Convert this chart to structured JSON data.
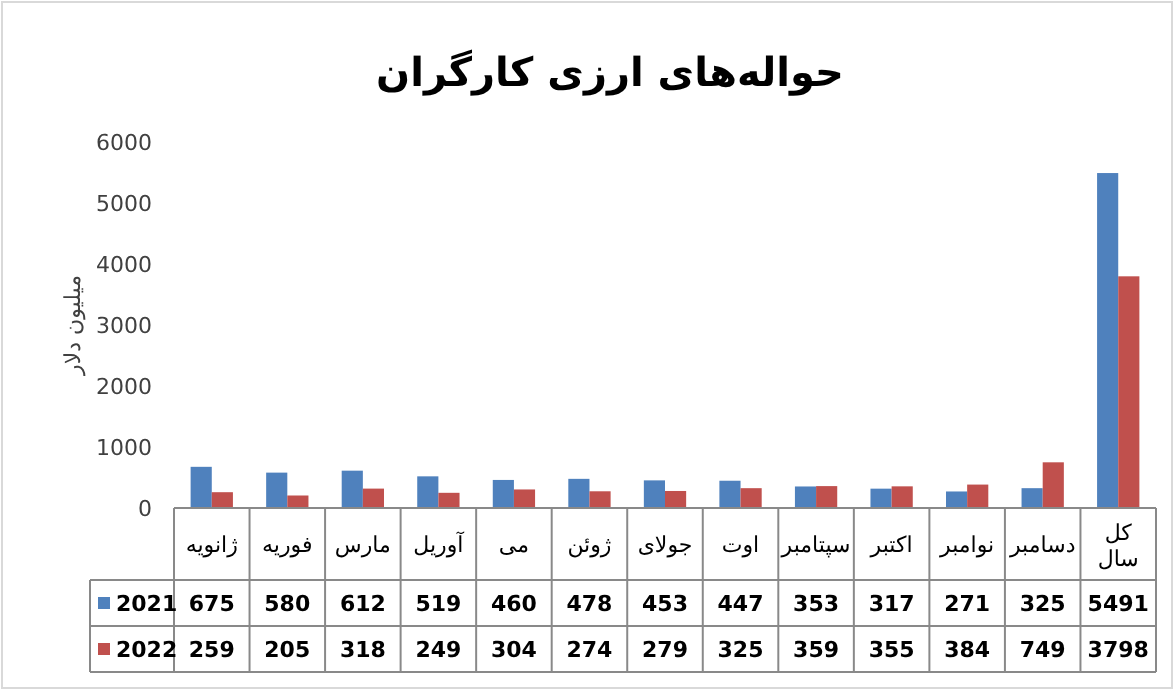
{
  "chart_data": {
    "type": "bar",
    "title": "حواله‌های ارزی کارگران",
    "ylabel": "میلیون دلار",
    "categories": [
      "ژانویه",
      "فوریه",
      "مارس",
      "آوریل",
      "می",
      "ژوئن",
      "جولای",
      "اوت",
      "سپتامبر",
      "اکتبر",
      "نوامبر",
      "دسامبر",
      "کل سال"
    ],
    "series": [
      {
        "name": "2021",
        "color": "#4f81bd",
        "values": [
          675,
          580,
          612,
          519,
          460,
          478,
          453,
          447,
          353,
          317,
          271,
          325,
          5491
        ]
      },
      {
        "name": "2022",
        "color": "#c0504d",
        "values": [
          259,
          205,
          318,
          249,
          304,
          274,
          279,
          325,
          359,
          355,
          384,
          749,
          3798
        ]
      }
    ],
    "ylim": [
      0,
      6000
    ],
    "yticks": [
      0,
      1000,
      2000,
      3000,
      4000,
      5000,
      6000
    ],
    "grid": false,
    "legend": "bottom",
    "data_labels": true
  }
}
